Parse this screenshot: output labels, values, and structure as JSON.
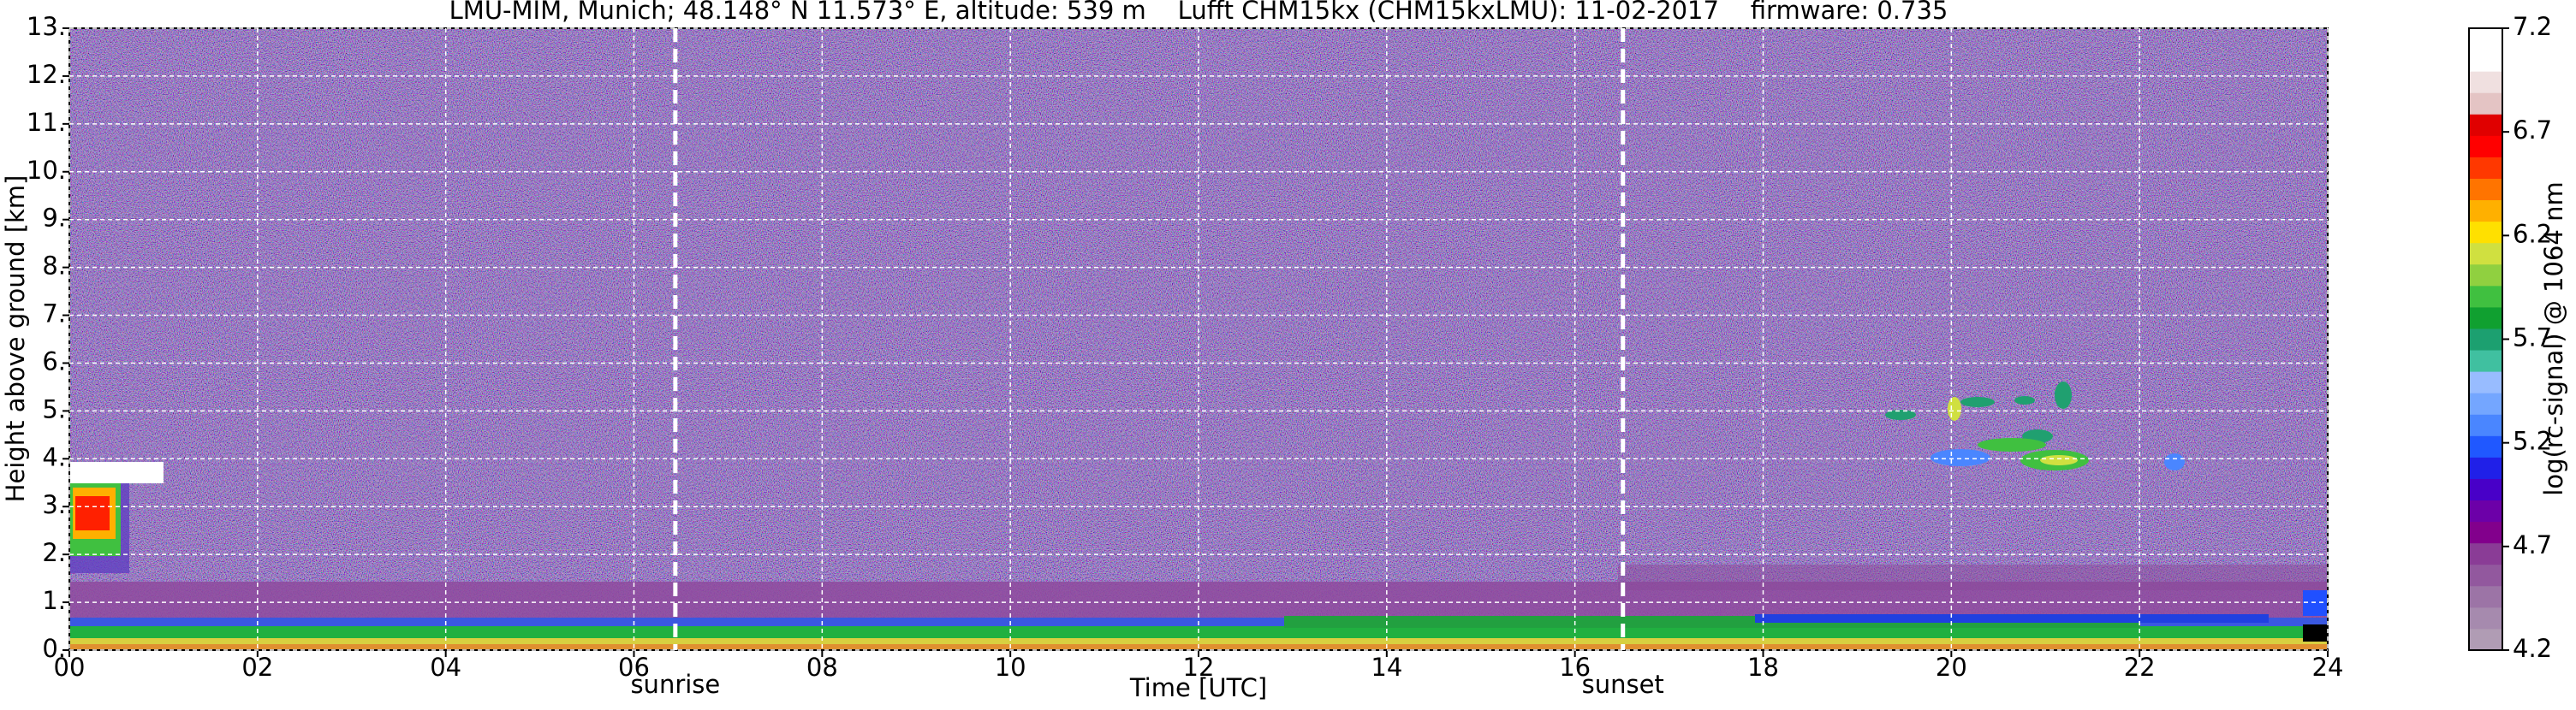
{
  "chart_data": {
    "type": "heatmap",
    "title": "LMU-MIM, Munich; 48.148° N 11.573° E, altitude: 539 m    Lufft CHM15kx (CHM15kxLMU): 11-02-2017    firmware: 0.735",
    "x_label": "Time [UTC]",
    "y_label": "Height above ground [km]",
    "xlim": [
      0,
      24
    ],
    "xticks": [
      {
        "value": 0,
        "label": "00"
      },
      {
        "value": 2,
        "label": "02"
      },
      {
        "value": 4,
        "label": "04"
      },
      {
        "value": 6,
        "label": "06"
      },
      {
        "value": 8,
        "label": "08"
      },
      {
        "value": 10,
        "label": "10"
      },
      {
        "value": 12,
        "label": "12"
      },
      {
        "value": 14,
        "label": "14"
      },
      {
        "value": 16,
        "label": "16"
      },
      {
        "value": 18,
        "label": "18"
      },
      {
        "value": 20,
        "label": "20"
      },
      {
        "value": 22,
        "label": "22"
      },
      {
        "value": 24,
        "label": "24"
      }
    ],
    "ylim": [
      0,
      13
    ],
    "yticks": [
      {
        "value": 0,
        "label": "0."
      },
      {
        "value": 1,
        "label": "1."
      },
      {
        "value": 2,
        "label": "2."
      },
      {
        "value": 3,
        "label": "3."
      },
      {
        "value": 4,
        "label": "4."
      },
      {
        "value": 5,
        "label": "5."
      },
      {
        "value": 6,
        "label": "6."
      },
      {
        "value": 7,
        "label": "7."
      },
      {
        "value": 8,
        "label": "8."
      },
      {
        "value": 9,
        "label": "9."
      },
      {
        "value": 10,
        "label": "10."
      },
      {
        "value": 11,
        "label": "11."
      },
      {
        "value": 12,
        "label": "12."
      },
      {
        "value": 13,
        "label": "13."
      }
    ],
    "grid": true,
    "annotations": [
      {
        "x": 6.44,
        "text": "sunrise"
      },
      {
        "x": 16.51,
        "text": "sunset"
      }
    ],
    "colorbar": {
      "label": "log(rc-signal) @ 1064 nm",
      "lim": [
        4.2,
        7.2
      ],
      "ticks": [
        4.2,
        4.7,
        5.2,
        5.7,
        6.2,
        6.7,
        7.2
      ],
      "colors": [
        "#b09cb4",
        "#a68aae",
        "#9c74a6",
        "#92589e",
        "#8a3c96",
        "#82008c",
        "#6c00a8",
        "#4800c8",
        "#2020e8",
        "#2058ff",
        "#4a86ff",
        "#74a6ff",
        "#98bcff",
        "#40c0a0",
        "#1ca070",
        "#10a030",
        "#40c040",
        "#90d040",
        "#d0e040",
        "#ffe000",
        "#ffb000",
        "#ff7400",
        "#ff3800",
        "#ff0000",
        "#e00000",
        "#e4c4c4",
        "#f0e0e0",
        "#ffffff",
        "#ffffff"
      ]
    }
  }
}
